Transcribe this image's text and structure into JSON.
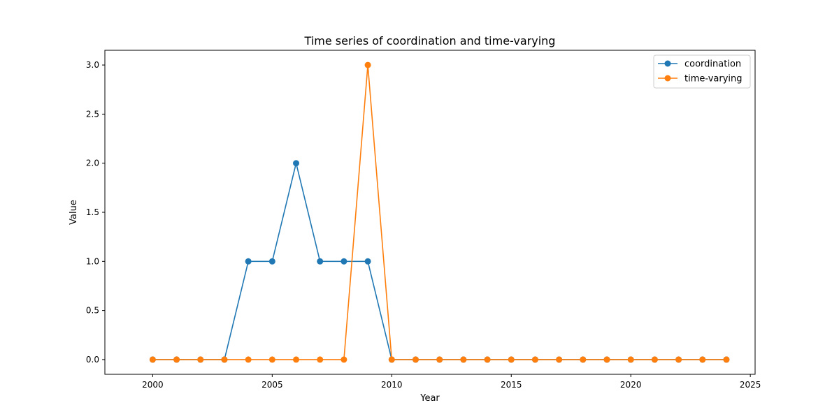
{
  "chart_data": {
    "type": "line",
    "title": "Time series of coordination and time-varying",
    "xlabel": "Year",
    "ylabel": "Value",
    "xlim": [
      1998.0,
      2025.2
    ],
    "ylim": [
      -0.15,
      3.15
    ],
    "xticks": [
      2000,
      2005,
      2010,
      2015,
      2020,
      2025
    ],
    "yticks": [
      0.0,
      0.5,
      1.0,
      1.5,
      2.0,
      2.5,
      3.0
    ],
    "xtick_labels": [
      "2000",
      "2005",
      "2010",
      "2015",
      "2020",
      "2025"
    ],
    "ytick_labels": [
      "0.0",
      "0.5",
      "1.0",
      "1.5",
      "2.0",
      "2.5",
      "3.0"
    ],
    "x": [
      2000,
      2001,
      2002,
      2003,
      2004,
      2005,
      2006,
      2007,
      2008,
      2009,
      2010,
      2011,
      2012,
      2013,
      2014,
      2015,
      2016,
      2017,
      2018,
      2019,
      2020,
      2021,
      2022,
      2023,
      2024
    ],
    "series": [
      {
        "name": "coordination",
        "color": "#1f77b4",
        "values": [
          0,
          0,
          0,
          0,
          1,
          1,
          2,
          1,
          1,
          1,
          0,
          0,
          0,
          0,
          0,
          0,
          0,
          0,
          0,
          0,
          0,
          0,
          0,
          0,
          0
        ]
      },
      {
        "name": "time-varying",
        "color": "#ff7f0e",
        "values": [
          0,
          0,
          0,
          0,
          0,
          0,
          0,
          0,
          0,
          3,
          0,
          0,
          0,
          0,
          0,
          0,
          0,
          0,
          0,
          0,
          0,
          0,
          0,
          0,
          0
        ]
      }
    ],
    "legend": "top-right",
    "grid": false
  }
}
